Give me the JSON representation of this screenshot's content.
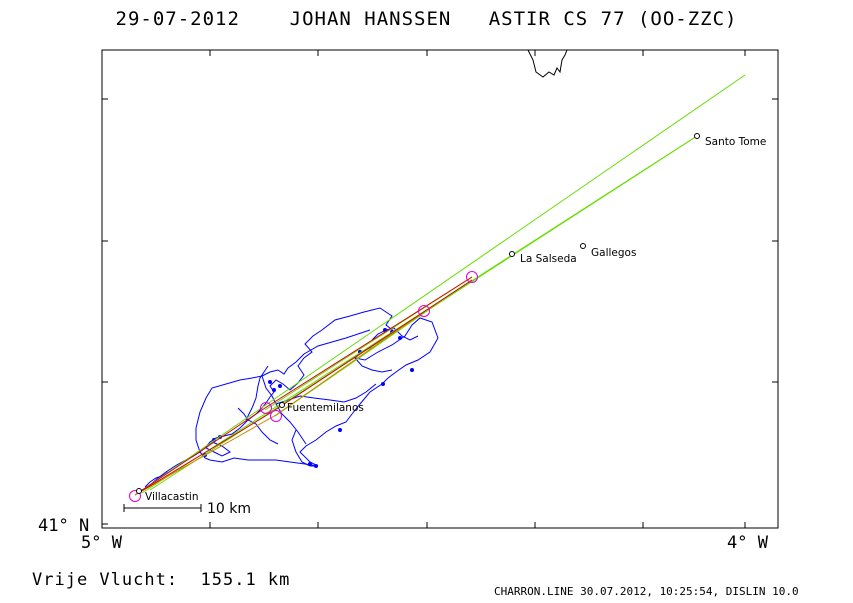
{
  "header": {
    "date": "29-07-2012",
    "pilot": "JOHAN HANSSEN",
    "glider": "ASTIR CS 77 (OO-ZZC)"
  },
  "axes": {
    "lat_label": "41° N",
    "lon_left_label": "5° W",
    "lon_right_label": "4° W"
  },
  "places": [
    {
      "id": "santo-tome",
      "name": "Santo Tome"
    },
    {
      "id": "la-salseda",
      "name": "La Salseda"
    },
    {
      "id": "gallegos",
      "name": "Gallegos"
    },
    {
      "id": "fuentemilanos",
      "name": "Fuentemilanos"
    },
    {
      "id": "villacastin",
      "name": "Villacastin"
    }
  ],
  "scale": {
    "label": "10 km"
  },
  "summary": {
    "free_flight": "Vrije Vlucht:  155.1 km"
  },
  "footer": {
    "credit": "CHARRON.LINE 30.07.2012, 10:25:54, DISLIN 10.0"
  },
  "colors": {
    "frame": "#000000",
    "track": "#0000ff",
    "legs": "#66dd00",
    "task": "#dd0000",
    "task_alt": "#cc8800",
    "turnpoint": "#dd00dd"
  }
}
